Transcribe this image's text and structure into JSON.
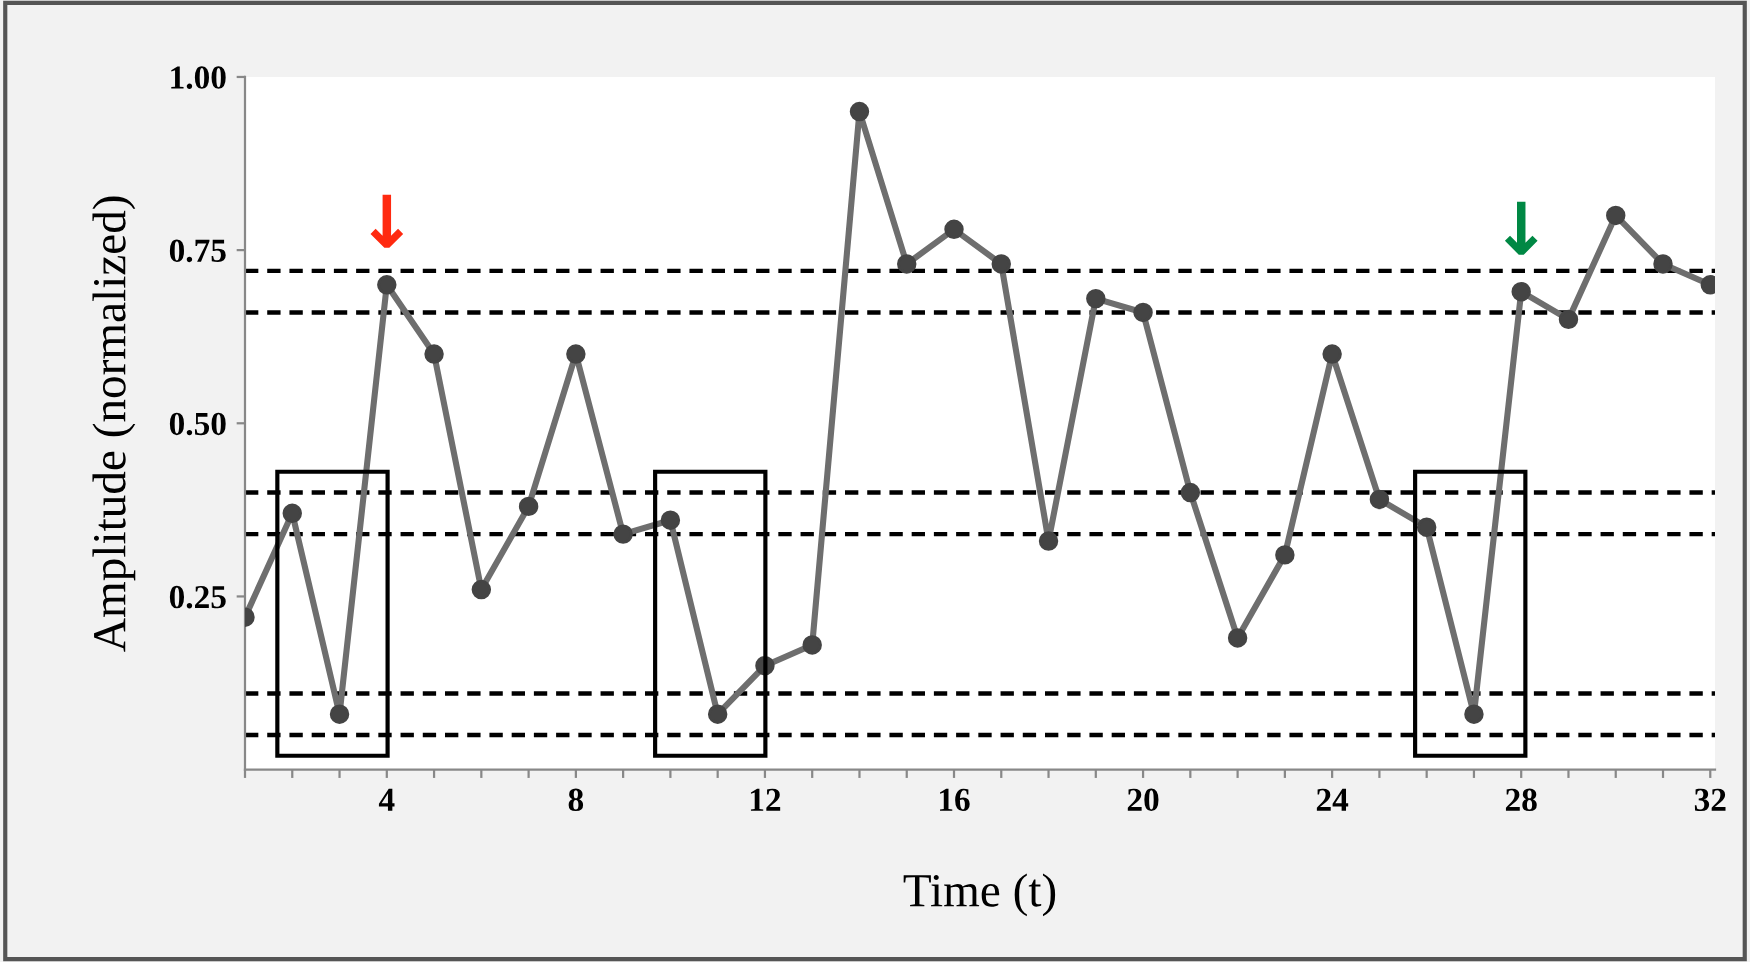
{
  "chart_data": {
    "type": "line",
    "xlabel": "Time (t)",
    "ylabel": "Amplitude (normalized)",
    "x": [
      1,
      2,
      3,
      4,
      5,
      6,
      7,
      8,
      9,
      10,
      11,
      12,
      13,
      14,
      15,
      16,
      17,
      18,
      19,
      20,
      21,
      22,
      23,
      24,
      25,
      26,
      27,
      28,
      29,
      30,
      31,
      32
    ],
    "series": [
      {
        "color": "#6e6e6e",
        "values": [
          0.22,
          0.37,
          0.08,
          0.7,
          0.6,
          0.26,
          0.38,
          0.6,
          0.34,
          0.36,
          0.08,
          0.15,
          0.18,
          0.95,
          0.73,
          0.78,
          0.73,
          0.33,
          0.68,
          0.66,
          0.4,
          0.19,
          0.31,
          0.6,
          0.39,
          0.35,
          0.08,
          0.69,
          0.65,
          0.8,
          0.73,
          0.7
        ]
      }
    ],
    "marker": "circle",
    "line_style": "solid",
    "grid": false,
    "legend": false,
    "xlim": [
      1,
      32.1
    ],
    "ylim": [
      0,
      1.0
    ],
    "xticks": [
      {
        "value": 1,
        "label": null
      },
      {
        "value": 2,
        "label": null
      },
      {
        "value": 3,
        "label": null
      },
      4,
      {
        "value": 5,
        "label": null
      },
      {
        "value": 6,
        "label": null
      },
      {
        "value": 7,
        "label": null
      },
      8,
      {
        "value": 9,
        "label": null
      },
      {
        "value": 10,
        "label": null
      },
      {
        "value": 11,
        "label": null
      },
      12,
      {
        "value": 13,
        "label": null
      },
      {
        "value": 14,
        "label": null
      },
      {
        "value": 15,
        "label": null
      },
      16,
      {
        "value": 17,
        "label": null
      },
      {
        "value": 18,
        "label": null
      },
      {
        "value": 19,
        "label": null
      },
      20,
      {
        "value": 21,
        "label": null
      },
      {
        "value": 22,
        "label": null
      },
      {
        "value": 23,
        "label": null
      },
      24,
      {
        "value": 25,
        "label": null
      },
      {
        "value": 26,
        "label": null
      },
      {
        "value": 27,
        "label": null
      },
      28,
      {
        "value": 29,
        "label": null
      },
      {
        "value": 30,
        "label": null
      },
      {
        "value": 31,
        "label": null
      },
      32
    ],
    "yticks": [
      {
        "value": 0.25,
        "label": "0.25"
      },
      {
        "value": 0.5,
        "label": "0.50"
      },
      {
        "value": 0.75,
        "label": "0.75"
      },
      {
        "value": 1.0,
        "label": "1.00"
      }
    ],
    "ref_lines": [
      {
        "axis": "y",
        "value": 0.72,
        "color": "#000000",
        "line_style": "dashed"
      },
      {
        "axis": "y",
        "value": 0.66,
        "color": "#000000",
        "line_style": "dashed"
      },
      {
        "axis": "y",
        "value": 0.4,
        "color": "#000000",
        "line_style": "dashed"
      },
      {
        "axis": "y",
        "value": 0.34,
        "color": "#000000",
        "line_style": "dashed"
      },
      {
        "axis": "y",
        "value": 0.11,
        "color": "#000000",
        "line_style": "dashed"
      },
      {
        "axis": "y",
        "value": 0.05,
        "color": "#000000",
        "line_style": "dashed"
      }
    ],
    "annotations": [
      {
        "text": "↓",
        "x": 4,
        "y": 0.7
      },
      {
        "text": "↓",
        "x": 28,
        "y": 0.69
      }
    ]
  }
}
